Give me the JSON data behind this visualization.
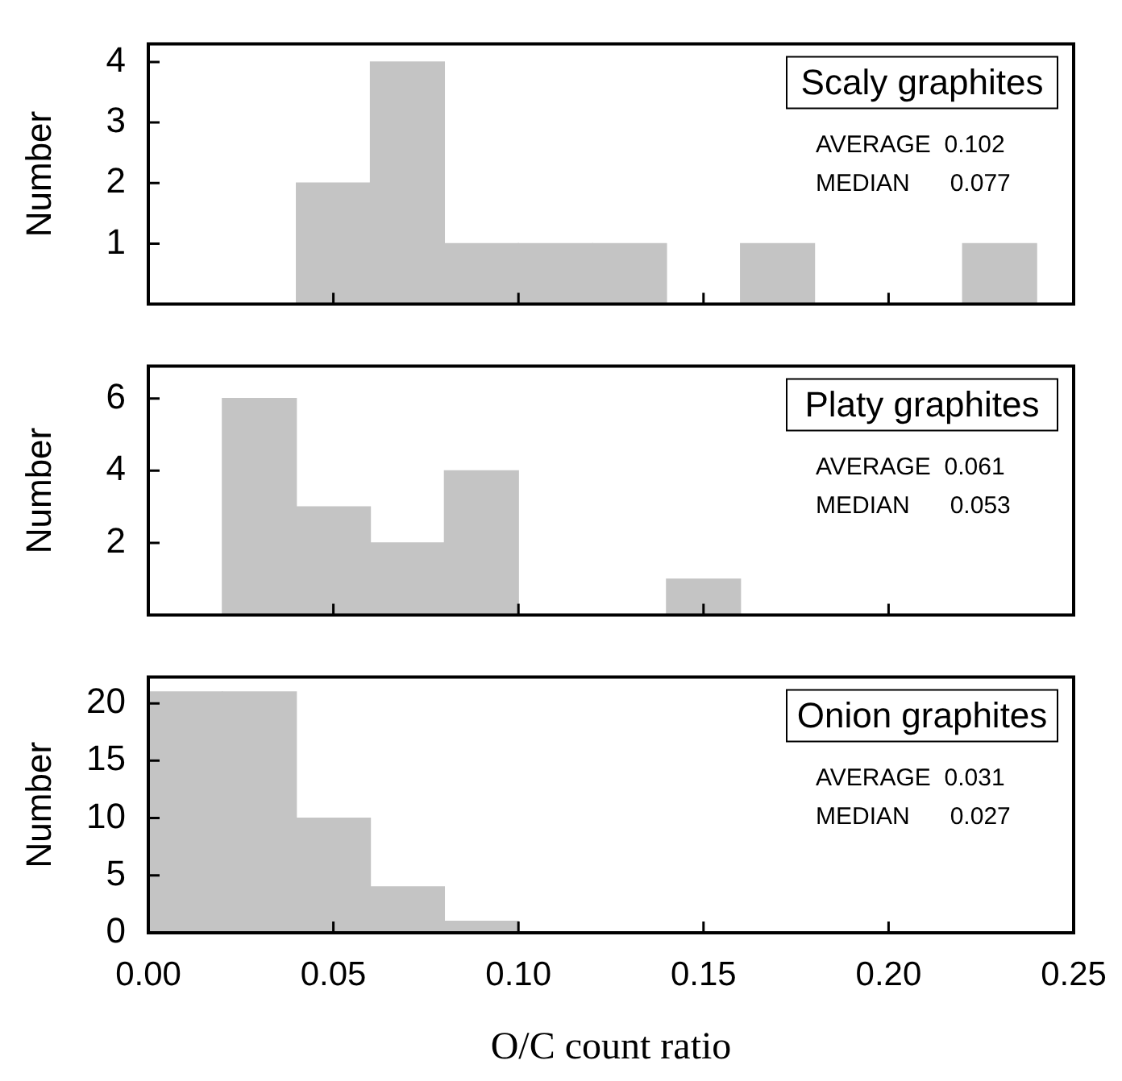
{
  "chart_data": [
    {
      "type": "histogram",
      "title": "Scaly graphites",
      "ylabel": "Number",
      "annotations": [
        "AVERAGE  0.102",
        "MEDIAN      0.077"
      ],
      "bins": [
        0,
        0.02,
        0.04,
        0.06,
        0.08,
        0.1,
        0.12,
        0.14,
        0.16,
        0.18,
        0.2,
        0.22,
        0.24
      ],
      "values": [
        0,
        0,
        2,
        4,
        1,
        1,
        1,
        0,
        1,
        0,
        0,
        1
      ],
      "color": "#c4c4c4",
      "xlim": [
        0,
        0.25
      ],
      "xticks": [
        {
          "value": 0,
          "label": null
        },
        {
          "value": 0.05,
          "label": null
        },
        {
          "value": 0.1,
          "label": null
        },
        {
          "value": 0.15,
          "label": null
        },
        {
          "value": 0.2,
          "label": null
        },
        {
          "value": 0.25,
          "label": null
        }
      ],
      "ylim": [
        0,
        4.3
      ],
      "yticks": [
        1,
        2,
        3,
        4
      ],
      "tick_labels": "y"
    },
    {
      "type": "histogram",
      "title": "Platy graphites",
      "ylabel": "Number",
      "annotations": [
        "AVERAGE  0.061",
        "MEDIAN      0.053"
      ],
      "bins": [
        0,
        0.02,
        0.04,
        0.06,
        0.08,
        0.1,
        0.12,
        0.14,
        0.16,
        0.18,
        0.2,
        0.22,
        0.24
      ],
      "values": [
        0,
        6,
        3,
        2,
        4,
        0,
        0,
        1,
        0,
        0,
        0,
        0
      ],
      "color": "#c4c4c4",
      "xlim": [
        0,
        0.25
      ],
      "xticks": [
        {
          "value": 0,
          "label": null
        },
        {
          "value": 0.05,
          "label": null
        },
        {
          "value": 0.1,
          "label": null
        },
        {
          "value": 0.15,
          "label": null
        },
        {
          "value": 0.2,
          "label": null
        },
        {
          "value": 0.25,
          "label": null
        }
      ],
      "ylim": [
        0,
        6.9
      ],
      "yticks": [
        2,
        4,
        6
      ],
      "tick_labels": "y"
    },
    {
      "type": "histogram",
      "title": "Onion graphites",
      "ylabel": "Number",
      "xlabel": "O/C count ratio",
      "annotations": [
        "AVERAGE  0.031",
        "MEDIAN      0.027"
      ],
      "bins": [
        0,
        0.02,
        0.04,
        0.06,
        0.08,
        0.1,
        0.12,
        0.14,
        0.16,
        0.18,
        0.2,
        0.22,
        0.24
      ],
      "values": [
        21,
        21,
        10,
        4,
        1,
        0,
        0,
        0,
        0,
        0,
        0,
        0
      ],
      "color": "#c4c4c4",
      "xlim": [
        0,
        0.25
      ],
      "xticks": [
        {
          "value": 0,
          "label": "0.00"
        },
        {
          "value": 0.05,
          "label": "0.05"
        },
        {
          "value": 0.1,
          "label": "0.10"
        },
        {
          "value": 0.15,
          "label": "0.15"
        },
        {
          "value": 0.2,
          "label": "0.20"
        },
        {
          "value": 0.25,
          "label": "0.25"
        }
      ],
      "ylim": [
        0,
        22.3
      ],
      "yticks": [
        0,
        5,
        10,
        15,
        20
      ]
    }
  ]
}
